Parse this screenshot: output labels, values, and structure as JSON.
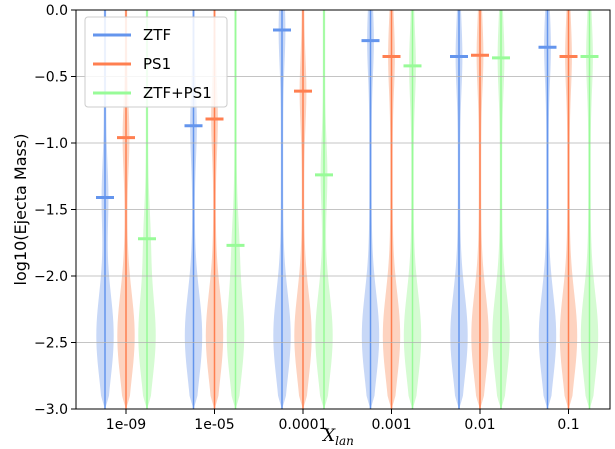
{
  "chart_data": {
    "type": "violin",
    "ylabel": "log10(Ejecta Mass)",
    "xlabel": {
      "main": "X",
      "sub": "lan"
    },
    "ylim": [
      -3.0,
      0.0
    ],
    "yticks": [
      0.0,
      -0.5,
      -1.0,
      -1.5,
      -2.0,
      -2.5,
      -3.0
    ],
    "ytick_labels": [
      "0.0",
      "−0.5",
      "−1.0",
      "−1.5",
      "−2.0",
      "−2.5",
      "−3.0"
    ],
    "grid": "horizontal",
    "legend_position": "top-left",
    "categories": [
      "1e-09",
      "1e-05",
      "0.0001",
      "0.001",
      "0.01",
      "0.1"
    ],
    "series": [
      {
        "name": "ZTF",
        "color": "#6495ED",
        "fill": "#C8D8F7",
        "medians": [
          -1.41,
          -0.87,
          -0.15,
          -0.23,
          -0.35,
          -0.28
        ]
      },
      {
        "name": "PS1",
        "color": "#FF7F50",
        "fill": "#FDD3C0",
        "medians": [
          -0.96,
          -0.82,
          -0.61,
          -0.35,
          -0.34,
          -0.35
        ]
      },
      {
        "name": "ZTF+PS1",
        "color": "#98FB98",
        "fill": "#D5FBD2",
        "medians": [
          -1.72,
          -1.77,
          -1.24,
          -0.42,
          -0.36,
          -0.35
        ]
      }
    ]
  }
}
